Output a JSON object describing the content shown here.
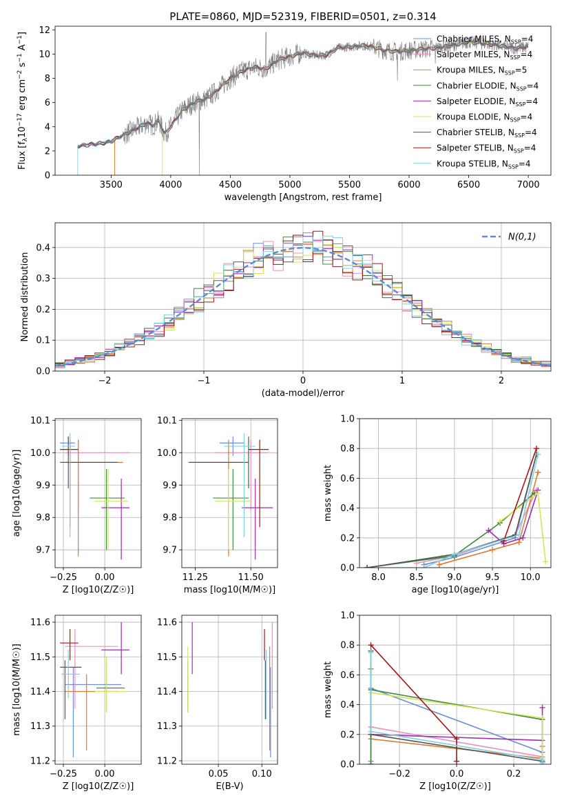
{
  "title": "PLATE=0860, MJD=52319, FIBERID=0501, z=0.314",
  "colors": {
    "Chabrier MILES": "#6a8fd8",
    "Salpeter MILES": "#e88fc0",
    "Kroupa MILES": "#e0782c",
    "Chabrier ELODIE": "#3f8a3f",
    "Salpeter ELODIE": "#9b2fae",
    "Kroupa ELODIE": "#d7e35a",
    "Chabrier STELIB": "#555555",
    "Salpeter STELIB": "#a31515",
    "Kroupa STELIB": "#7ed1e0",
    "normal": "#5b8ad6"
  },
  "legend_main": [
    {
      "name": "Chabrier MILES",
      "nssp": "4"
    },
    {
      "name": "Salpeter MILES",
      "nssp": "4"
    },
    {
      "name": "Kroupa MILES",
      "nssp": "5"
    },
    {
      "name": "Chabrier ELODIE",
      "nssp": "4"
    },
    {
      "name": "Salpeter ELODIE",
      "nssp": "4"
    },
    {
      "name": "Kroupa ELODIE",
      "nssp": "4"
    },
    {
      "name": "Chabrier STELIB",
      "nssp": "4"
    },
    {
      "name": "Salpeter STELIB",
      "nssp": "4"
    },
    {
      "name": "Kroupa STELIB",
      "nssp": "4"
    }
  ],
  "chart_data": [
    {
      "id": "spectrum",
      "type": "line",
      "xlabel": "wavelength [Angstrom, rest frame]",
      "ylabel": "Flux [f_λ10^-17 erg cm^-2 s^-1 A^-1]",
      "xlim": [
        3030,
        7190
      ],
      "ylim": [
        0,
        12.3
      ],
      "xticks": [
        3500,
        4000,
        4500,
        5000,
        5500,
        6000,
        6500,
        7000
      ],
      "yticks": [
        0,
        2,
        4,
        6,
        8,
        10,
        12
      ],
      "continuum": [
        [
          3220,
          2.4
        ],
        [
          3300,
          2.5
        ],
        [
          3400,
          2.6
        ],
        [
          3500,
          2.8
        ],
        [
          3600,
          3.3
        ],
        [
          3700,
          3.8
        ],
        [
          3800,
          4.3
        ],
        [
          3850,
          4.1
        ],
        [
          3900,
          4.5
        ],
        [
          3950,
          3.4
        ],
        [
          4000,
          4.0
        ],
        [
          4100,
          5.4
        ],
        [
          4200,
          6.0
        ],
        [
          4300,
          6.3
        ],
        [
          4400,
          7.1
        ],
        [
          4500,
          8.0
        ],
        [
          4600,
          8.6
        ],
        [
          4700,
          8.9
        ],
        [
          4800,
          8.8
        ],
        [
          4900,
          9.5
        ],
        [
          5000,
          9.8
        ],
        [
          5100,
          10.1
        ],
        [
          5200,
          9.9
        ],
        [
          5300,
          9.9
        ],
        [
          5400,
          10.5
        ],
        [
          5500,
          10.6
        ],
        [
          5600,
          10.7
        ],
        [
          5700,
          10.6
        ],
        [
          5800,
          10.3
        ],
        [
          5900,
          10.2
        ],
        [
          6000,
          10.3
        ],
        [
          6100,
          10.4
        ],
        [
          6200,
          10.5
        ],
        [
          6300,
          10.6
        ],
        [
          6400,
          10.8
        ],
        [
          6500,
          11.0
        ],
        [
          6600,
          10.9
        ],
        [
          6700,
          10.8
        ],
        [
          6800,
          10.6
        ],
        [
          6900,
          10.5
        ],
        [
          7000,
          10.6
        ]
      ],
      "grid": false
    },
    {
      "id": "residuals",
      "type": "histogram",
      "xlabel": "(data-model)/error",
      "ylabel": "Normed distribution",
      "xlim": [
        -2.5,
        2.5
      ],
      "ylim": [
        0,
        0.48
      ],
      "xticks": [
        -2,
        -1,
        0,
        1,
        2
      ],
      "yticks": [
        0.0,
        0.1,
        0.2,
        0.3,
        0.4
      ],
      "bins": 50,
      "overlay": {
        "name": "N(0,1)",
        "mu": 0,
        "sigma": 1
      },
      "grid": true
    },
    {
      "id": "age_vs_Z",
      "type": "errorbar",
      "xlabel": "Z [log10(Z/Z☉)]",
      "ylabel": "age  [log10(age/yr)]",
      "xlim": [
        -0.3,
        0.22
      ],
      "ylim": [
        9.645,
        10.105
      ],
      "xticks": [
        -0.25,
        0.0
      ],
      "yticks": [
        9.7,
        9.8,
        9.9,
        10.0,
        10.1
      ],
      "points": [
        {
          "series": "Chabrier MILES",
          "x": -0.22,
          "y": 10.03,
          "xlo": -0.27,
          "xhi": -0.18,
          "ylo": 9.99,
          "yhi": 10.05
        },
        {
          "series": "Salpeter MILES",
          "x": -0.16,
          "y": 10.0,
          "xlo": -0.24,
          "xhi": 0.15,
          "ylo": 9.82,
          "yhi": 10.04
        },
        {
          "series": "Kroupa MILES",
          "x": -0.16,
          "y": 9.97,
          "xlo": -0.24,
          "xhi": 0.11,
          "ylo": 9.68,
          "yhi": 10.04
        },
        {
          "series": "Chabrier ELODIE",
          "x": 0.01,
          "y": 9.86,
          "xlo": -0.09,
          "xhi": 0.12,
          "ylo": 9.7,
          "yhi": 9.95
        },
        {
          "series": "Salpeter ELODIE",
          "x": 0.1,
          "y": 9.83,
          "xlo": -0.02,
          "xhi": 0.15,
          "ylo": 9.67,
          "yhi": 9.92
        },
        {
          "series": "Kroupa ELODIE",
          "x": 0.02,
          "y": 9.85,
          "xlo": -0.06,
          "xhi": 0.14,
          "ylo": 9.7,
          "yhi": 9.95
        },
        {
          "series": "Chabrier STELIB",
          "x": -0.22,
          "y": 9.97,
          "xlo": -0.27,
          "xhi": 0.08,
          "ylo": 9.89,
          "yhi": 10.05
        },
        {
          "series": "Salpeter STELIB",
          "x": -0.21,
          "y": 10.01,
          "xlo": -0.27,
          "xhi": -0.16,
          "ylo": 9.77,
          "yhi": 10.04
        },
        {
          "series": "Kroupa STELIB",
          "x": -0.21,
          "y": 10.02,
          "xlo": -0.26,
          "xhi": -0.18,
          "ylo": 9.74,
          "yhi": 10.06
        }
      ]
    },
    {
      "id": "age_vs_mass",
      "type": "errorbar",
      "xlabel": "mass [log10(M/M☉)]",
      "ylabel": "",
      "xlim": [
        11.19,
        11.62
      ],
      "ylim": [
        9.645,
        10.105
      ],
      "xticks": [
        11.25,
        11.5
      ],
      "yticks": [
        9.7,
        9.8,
        9.9,
        10.0,
        10.1
      ],
      "points": [
        {
          "series": "Chabrier MILES",
          "x": 11.42,
          "y": 10.03,
          "xlo": 11.36,
          "xhi": 11.47,
          "ylo": 9.99,
          "yhi": 10.05
        },
        {
          "series": "Salpeter MILES",
          "x": 11.5,
          "y": 10.0,
          "xlo": 11.34,
          "xhi": 11.58,
          "ylo": 9.82,
          "yhi": 10.04
        },
        {
          "series": "Kroupa MILES",
          "x": 11.4,
          "y": 9.97,
          "xlo": 11.23,
          "xhi": 11.45,
          "ylo": 9.68,
          "yhi": 10.04
        },
        {
          "series": "Chabrier ELODIE",
          "x": 11.42,
          "y": 9.86,
          "xlo": 11.33,
          "xhi": 11.49,
          "ylo": 9.7,
          "yhi": 9.95
        },
        {
          "series": "Salpeter ELODIE",
          "x": 11.52,
          "y": 9.83,
          "xlo": 11.46,
          "xhi": 11.6,
          "ylo": 9.67,
          "yhi": 9.92
        },
        {
          "series": "Kroupa ELODIE",
          "x": 11.4,
          "y": 9.85,
          "xlo": 11.34,
          "xhi": 11.5,
          "ylo": 9.7,
          "yhi": 9.95
        },
        {
          "series": "Chabrier STELIB",
          "x": 11.49,
          "y": 9.97,
          "xlo": 11.22,
          "xhi": 11.49,
          "ylo": 9.89,
          "yhi": 10.05
        },
        {
          "series": "Salpeter STELIB",
          "x": 11.54,
          "y": 10.01,
          "xlo": 11.49,
          "xhi": 11.58,
          "ylo": 9.77,
          "yhi": 10.04
        },
        {
          "series": "Kroupa STELIB",
          "x": 11.47,
          "y": 10.02,
          "xlo": 11.38,
          "xhi": 11.52,
          "ylo": 9.74,
          "yhi": 10.06
        }
      ]
    },
    {
      "id": "weight_vs_age",
      "type": "line",
      "xlabel": "age  [log10(age/yr)]",
      "ylabel": "mass weight",
      "xlim": [
        7.75,
        10.27
      ],
      "ylim": [
        0,
        1
      ],
      "xticks": [
        8.0,
        8.5,
        9.0,
        9.5,
        10.0
      ],
      "yticks": [
        0.0,
        0.2,
        0.4,
        0.6,
        0.8,
        1.0
      ],
      "series": [
        {
          "name": "Chabrier MILES",
          "x": [
            8.6,
            9.0,
            9.8,
            10.08
          ],
          "y": [
            0.02,
            0.07,
            0.2,
            0.76
          ]
        },
        {
          "name": "Salpeter MILES",
          "x": [
            8.5,
            9.0,
            9.8,
            10.08
          ],
          "y": [
            0.03,
            0.08,
            0.22,
            0.52
          ]
        },
        {
          "name": "Kroupa MILES",
          "x": [
            8.8,
            9.5,
            9.85,
            10.1
          ],
          "y": [
            0.02,
            0.12,
            0.17,
            0.64
          ]
        },
        {
          "name": "Chabrier ELODIE",
          "x": [
            7.85,
            9.0,
            9.6,
            10.05
          ],
          "y": [
            0.0,
            0.08,
            0.3,
            0.5
          ]
        },
        {
          "name": "Salpeter ELODIE",
          "x": [
            9.45,
            9.65,
            9.9,
            10.1
          ],
          "y": [
            0.25,
            0.16,
            0.2,
            0.52
          ]
        },
        {
          "name": "Kroupa ELODIE",
          "x": [
            9.6,
            10.1,
            10.2
          ],
          "y": [
            0.31,
            0.5,
            0.04
          ]
        },
        {
          "name": "Chabrier STELIB",
          "x": [
            7.85,
            9.0,
            9.8,
            10.08
          ],
          "y": [
            0.0,
            0.09,
            0.22,
            0.76
          ]
        },
        {
          "name": "Salpeter STELIB",
          "x": [
            9.65,
            10.08
          ],
          "y": [
            0.18,
            0.8
          ]
        },
        {
          "name": "Kroupa STELIB",
          "x": [
            8.6,
            9.0,
            9.85,
            10.1
          ],
          "y": [
            0.0,
            0.09,
            0.22,
            0.76
          ]
        }
      ]
    },
    {
      "id": "mass_vs_Z",
      "type": "errorbar",
      "xlabel": "Z [log10(Z/Z☉)]",
      "ylabel": "mass [log10(M/M☉)]",
      "xlim": [
        -0.3,
        0.22
      ],
      "ylim": [
        11.19,
        11.62
      ],
      "xticks": [
        -0.25,
        0.0
      ],
      "yticks": [
        11.2,
        11.3,
        11.4,
        11.5,
        11.6
      ],
      "points": [
        {
          "series": "Chabrier MILES",
          "x": -0.19,
          "y": 11.42,
          "xlo": -0.24,
          "xhi": 0.1,
          "ylo": 11.21,
          "yhi": 11.47
        },
        {
          "series": "Salpeter MILES",
          "x": -0.18,
          "y": 11.53,
          "xlo": -0.24,
          "xhi": 0.08,
          "ylo": 11.35,
          "yhi": 11.58
        },
        {
          "series": "Kroupa MILES",
          "x": -0.11,
          "y": 11.4,
          "xlo": -0.24,
          "xhi": 0.08,
          "ylo": 11.23,
          "yhi": 11.45
        },
        {
          "series": "Chabrier ELODIE",
          "x": 0.01,
          "y": 11.41,
          "xlo": -0.05,
          "xhi": 0.12,
          "ylo": 11.34,
          "yhi": 11.49
        },
        {
          "series": "Salpeter ELODIE",
          "x": 0.1,
          "y": 11.52,
          "xlo": -0.02,
          "xhi": 0.15,
          "ylo": 11.45,
          "yhi": 11.6
        },
        {
          "series": "Kroupa ELODIE",
          "x": 0.01,
          "y": 11.4,
          "xlo": -0.06,
          "xhi": 0.14,
          "ylo": 11.34,
          "yhi": 11.5
        },
        {
          "series": "Chabrier STELIB",
          "x": -0.24,
          "y": 11.47,
          "xlo": -0.27,
          "xhi": -0.14,
          "ylo": 11.32,
          "yhi": 11.49
        },
        {
          "series": "Salpeter STELIB",
          "x": -0.21,
          "y": 11.54,
          "xlo": -0.27,
          "xhi": -0.16,
          "ylo": 11.49,
          "yhi": 11.58
        },
        {
          "series": "Kroupa STELIB",
          "x": -0.22,
          "y": 11.45,
          "xlo": -0.26,
          "xhi": -0.15,
          "ylo": 11.38,
          "yhi": 11.52
        }
      ]
    },
    {
      "id": "mass_vs_ebv",
      "type": "errorbar",
      "xlabel": "E(B-V)",
      "ylabel": "",
      "xlim": [
        0.008,
        0.118
      ],
      "ylim": [
        11.19,
        11.62
      ],
      "xticks": [
        0.05,
        0.1
      ],
      "yticks": [
        11.2,
        11.3,
        11.4,
        11.5,
        11.6
      ],
      "points": [
        {
          "series": "Chabrier MILES",
          "x": 0.11,
          "y": 11.42,
          "ylo": 11.21,
          "yhi": 11.47
        },
        {
          "series": "Salpeter MILES",
          "x": 0.112,
          "y": 11.53,
          "ylo": 11.35,
          "yhi": 11.6
        },
        {
          "series": "Kroupa MILES",
          "x": 0.109,
          "y": 11.4,
          "ylo": 11.23,
          "yhi": 11.53
        },
        {
          "series": "Chabrier ELODIE",
          "x": 0.015,
          "y": 11.41,
          "ylo": 11.34,
          "yhi": 11.49
        },
        {
          "series": "Salpeter ELODIE",
          "x": 0.02,
          "y": 11.52,
          "ylo": 11.45,
          "yhi": 11.6
        },
        {
          "series": "Kroupa ELODIE",
          "x": 0.015,
          "y": 11.4,
          "ylo": 11.34,
          "yhi": 11.53
        },
        {
          "series": "Chabrier STELIB",
          "x": 0.104,
          "y": 11.47,
          "ylo": 11.32,
          "yhi": 11.49
        },
        {
          "series": "Salpeter STELIB",
          "x": 0.103,
          "y": 11.54,
          "ylo": 11.49,
          "yhi": 11.58
        },
        {
          "series": "Kroupa STELIB",
          "x": 0.105,
          "y": 11.45,
          "ylo": 11.32,
          "yhi": 11.52
        }
      ]
    },
    {
      "id": "weight_vs_Z",
      "type": "line",
      "xlabel": "Z [log10(Z/Z☉)]",
      "ylabel": "mass weight",
      "xlim": [
        -0.34,
        0.33
      ],
      "ylim": [
        0,
        1
      ],
      "xticks": [
        -0.2,
        0.0,
        0.2
      ],
      "yticks": [
        0.0,
        0.2,
        0.4,
        0.6,
        0.8,
        1.0
      ],
      "series": [
        {
          "name": "Chabrier MILES",
          "x": [
            -0.3,
            -0.3,
            0.3,
            0.3
          ],
          "y": [
            0.02,
            0.51,
            0.08,
            0.01
          ]
        },
        {
          "name": "Salpeter MILES",
          "x": [
            -0.3,
            -0.3,
            0.3,
            0.3
          ],
          "y": [
            0.0,
            0.25,
            0.05,
            0.01
          ]
        },
        {
          "name": "Kroupa MILES",
          "x": [
            -0.3,
            -0.3,
            0.3,
            0.3
          ],
          "y": [
            0.64,
            0.17,
            0.04,
            0.12
          ]
        },
        {
          "name": "Chabrier ELODIE",
          "x": [
            -0.3,
            -0.3,
            0.3,
            0.3
          ],
          "y": [
            0.0,
            0.5,
            0.3,
            0.01
          ]
        },
        {
          "name": "Salpeter ELODIE",
          "x": [
            -0.3,
            0.3,
            0.3
          ],
          "y": [
            0.2,
            0.16,
            0.38
          ]
        },
        {
          "name": "Kroupa ELODIE",
          "x": [
            -0.3,
            0.3,
            0.3
          ],
          "y": [
            0.48,
            0.31,
            0.04
          ]
        },
        {
          "name": "Chabrier STELIB",
          "x": [
            -0.3,
            -0.3,
            0.3,
            0.3
          ],
          "y": [
            0.76,
            0.2,
            0.02,
            0.01
          ]
        },
        {
          "name": "Salpeter STELIB",
          "x": [
            -0.3,
            0.0,
            0.0
          ],
          "y": [
            0.8,
            0.17,
            0.02
          ]
        },
        {
          "name": "Kroupa STELIB",
          "x": [
            -0.3,
            -0.3,
            0.3,
            0.3
          ],
          "y": [
            0.75,
            0.22,
            0.03,
            0.01
          ]
        }
      ]
    }
  ]
}
